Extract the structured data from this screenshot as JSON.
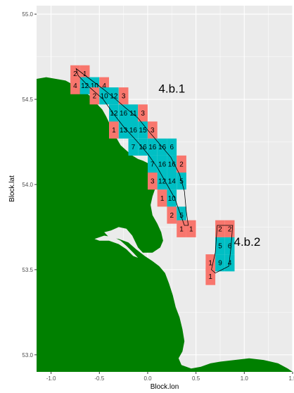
{
  "chart_data": {
    "type": "map",
    "xlabel": "Block.lon",
    "ylabel": "Block.lat",
    "xlim": [
      -1.15,
      1.5
    ],
    "ylim": [
      52.9,
      55.05
    ],
    "x_ticks": [
      -1.0,
      -0.5,
      0.0,
      0.5,
      1.0,
      1.5
    ],
    "x_tick_labels": [
      "-1.0",
      "-0.5",
      "0.0",
      "0.5",
      "1.0",
      "1.5"
    ],
    "y_ticks": [
      53.0,
      53.5,
      54.0,
      54.5,
      55.0
    ],
    "y_tick_labels": [
      "53.0",
      "53.5",
      "54.0",
      "54.5",
      "55.0"
    ],
    "grid": true,
    "colors": {
      "panel": "#ebebeb",
      "grid_major": "#ffffff",
      "land": "#008000",
      "salmon": "#f8766d",
      "cyan": "#00bfc4"
    },
    "area_labels": [
      {
        "text": "4.b.1",
        "lon": 0.25,
        "lat": 54.54
      },
      {
        "text": "4.b.2",
        "lon": 1.03,
        "lat": 53.64
      }
    ],
    "cells": [
      {
        "lon": -0.75,
        "lat": 54.65,
        "text": "2",
        "fill": "salmon"
      },
      {
        "lon": -0.65,
        "lat": 54.65,
        "text": "1",
        "fill": "salmon"
      },
      {
        "lon": -0.75,
        "lat": 54.58,
        "text": "4",
        "fill": "salmon"
      },
      {
        "lon": -0.65,
        "lat": 54.58,
        "text": "12",
        "fill": "cyan"
      },
      {
        "lon": -0.55,
        "lat": 54.58,
        "text": "10",
        "fill": "cyan"
      },
      {
        "lon": -0.45,
        "lat": 54.58,
        "text": "4",
        "fill": "salmon"
      },
      {
        "lon": -0.55,
        "lat": 54.52,
        "text": "2",
        "fill": "salmon"
      },
      {
        "lon": -0.45,
        "lat": 54.52,
        "text": "10",
        "fill": "cyan"
      },
      {
        "lon": -0.35,
        "lat": 54.52,
        "text": "12",
        "fill": "cyan"
      },
      {
        "lon": -0.25,
        "lat": 54.52,
        "text": "3",
        "fill": "salmon"
      },
      {
        "lon": -0.35,
        "lat": 54.42,
        "text": "12",
        "fill": "cyan"
      },
      {
        "lon": -0.25,
        "lat": 54.42,
        "text": "16",
        "fill": "cyan"
      },
      {
        "lon": -0.15,
        "lat": 54.42,
        "text": "11",
        "fill": "cyan"
      },
      {
        "lon": -0.05,
        "lat": 54.42,
        "text": "3",
        "fill": "salmon"
      },
      {
        "lon": -0.35,
        "lat": 54.32,
        "text": "1",
        "fill": "salmon"
      },
      {
        "lon": -0.25,
        "lat": 54.32,
        "text": "13",
        "fill": "cyan"
      },
      {
        "lon": -0.15,
        "lat": 54.32,
        "text": "16",
        "fill": "cyan"
      },
      {
        "lon": -0.05,
        "lat": 54.32,
        "text": "15",
        "fill": "cyan"
      },
      {
        "lon": 0.05,
        "lat": 54.32,
        "text": "3",
        "fill": "salmon"
      },
      {
        "lon": -0.15,
        "lat": 54.22,
        "text": "7",
        "fill": "cyan"
      },
      {
        "lon": -0.05,
        "lat": 54.22,
        "text": "16",
        "fill": "cyan"
      },
      {
        "lon": 0.05,
        "lat": 54.22,
        "text": "16",
        "fill": "cyan"
      },
      {
        "lon": 0.15,
        "lat": 54.22,
        "text": "16",
        "fill": "cyan"
      },
      {
        "lon": 0.25,
        "lat": 54.22,
        "text": "6",
        "fill": "cyan"
      },
      {
        "lon": 0.05,
        "lat": 54.12,
        "text": "7",
        "fill": "cyan"
      },
      {
        "lon": 0.15,
        "lat": 54.12,
        "text": "16",
        "fill": "cyan"
      },
      {
        "lon": 0.25,
        "lat": 54.12,
        "text": "16",
        "fill": "cyan"
      },
      {
        "lon": 0.35,
        "lat": 54.12,
        "text": "2",
        "fill": "salmon"
      },
      {
        "lon": 0.05,
        "lat": 54.02,
        "text": "3",
        "fill": "salmon"
      },
      {
        "lon": 0.15,
        "lat": 54.02,
        "text": "12",
        "fill": "cyan"
      },
      {
        "lon": 0.25,
        "lat": 54.02,
        "text": "14",
        "fill": "cyan"
      },
      {
        "lon": 0.35,
        "lat": 54.02,
        "text": "5",
        "fill": "cyan"
      },
      {
        "lon": 0.15,
        "lat": 53.92,
        "text": "1",
        "fill": "salmon"
      },
      {
        "lon": 0.25,
        "lat": 53.92,
        "text": "10",
        "fill": "cyan"
      },
      {
        "lon": 0.25,
        "lat": 53.82,
        "text": "2",
        "fill": "salmon"
      },
      {
        "lon": 0.35,
        "lat": 53.82,
        "text": "5",
        "fill": "cyan"
      },
      {
        "lon": 0.35,
        "lat": 53.74,
        "text": "1",
        "fill": "salmon"
      },
      {
        "lon": 0.45,
        "lat": 53.74,
        "text": "1",
        "fill": "salmon"
      },
      {
        "lon": 0.75,
        "lat": 53.74,
        "text": "2",
        "fill": "salmon"
      },
      {
        "lon": 0.85,
        "lat": 53.74,
        "text": "2",
        "fill": "salmon"
      },
      {
        "lon": 0.75,
        "lat": 53.64,
        "text": "5",
        "fill": "cyan"
      },
      {
        "lon": 0.85,
        "lat": 53.64,
        "text": "6",
        "fill": "cyan"
      },
      {
        "lon": 0.65,
        "lat": 53.54,
        "text": "1",
        "fill": "salmon"
      },
      {
        "lon": 0.75,
        "lat": 53.54,
        "text": "9",
        "fill": "cyan"
      },
      {
        "lon": 0.85,
        "lat": 53.54,
        "text": "4",
        "fill": "cyan"
      },
      {
        "lon": 0.65,
        "lat": 53.46,
        "text": "1",
        "fill": "salmon"
      }
    ]
  }
}
